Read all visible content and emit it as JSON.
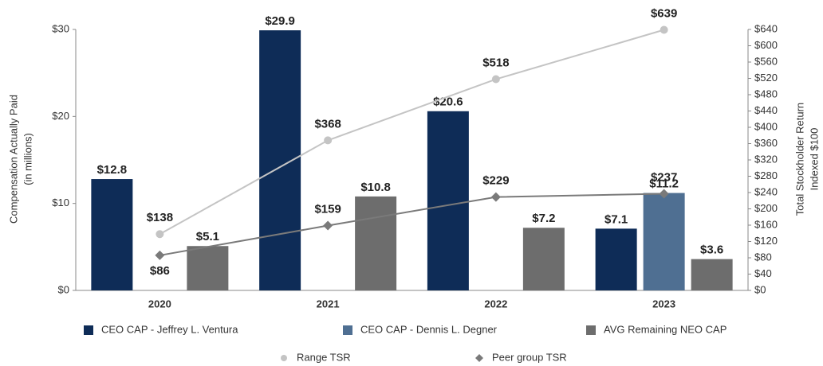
{
  "chart_data": {
    "type": "bar",
    "categories": [
      "2020",
      "2021",
      "2022",
      "2023"
    ],
    "ylabel": [
      "Compensation Actually Paid",
      "(in millions)"
    ],
    "y2label": [
      "Total Stockholder Return",
      "Indexed $100"
    ],
    "ylim": [
      0,
      30
    ],
    "yticks": [
      {
        "value": 0,
        "label": "$0"
      },
      {
        "value": 10,
        "label": "$10"
      },
      {
        "value": 20,
        "label": "$20"
      },
      {
        "value": 30,
        "label": "$30"
      }
    ],
    "y2lim": [
      0,
      640
    ],
    "y2ticks": [
      {
        "value": 0,
        "label": "$0"
      },
      {
        "value": 40,
        "label": "$40"
      },
      {
        "value": 80,
        "label": "$80"
      },
      {
        "value": 120,
        "label": "$120"
      },
      {
        "value": 160,
        "label": "$160"
      },
      {
        "value": 200,
        "label": "$200"
      },
      {
        "value": 240,
        "label": "$240"
      },
      {
        "value": 280,
        "label": "$280"
      },
      {
        "value": 320,
        "label": "$320"
      },
      {
        "value": 360,
        "label": "$360"
      },
      {
        "value": 400,
        "label": "$400"
      },
      {
        "value": 440,
        "label": "$440"
      },
      {
        "value": 480,
        "label": "$480"
      },
      {
        "value": 520,
        "label": "$520"
      },
      {
        "value": 560,
        "label": "$560"
      },
      {
        "value": 600,
        "label": "$600"
      },
      {
        "value": 640,
        "label": "$640"
      }
    ],
    "series": [
      {
        "name": "CEO CAP - Jeffrey L. Ventura",
        "type": "bar",
        "color": "#0e2c57",
        "values": [
          12.8,
          29.9,
          20.6,
          7.1
        ],
        "value_labels": [
          "$12.8",
          "$29.9",
          "$20.6",
          "$7.1"
        ]
      },
      {
        "name": "CEO CAP - Dennis L. Degner",
        "type": "bar",
        "color": "#4f6f92",
        "values": [
          null,
          null,
          null,
          11.2
        ],
        "value_labels": [
          null,
          null,
          null,
          "$11.2"
        ]
      },
      {
        "name": "AVG Remaining NEO CAP",
        "type": "bar",
        "color": "#6d6d6d",
        "values": [
          5.1,
          10.8,
          7.2,
          3.6
        ],
        "value_labels": [
          "$5.1",
          "$10.8",
          "$7.2",
          "$3.6"
        ]
      },
      {
        "name": "Range TSR",
        "type": "line",
        "axis": "y2",
        "marker": "circle",
        "color": "#c4c4c4",
        "values": [
          138,
          368,
          518,
          639
        ],
        "value_labels": [
          "$138",
          "$368",
          "$518",
          "$639"
        ]
      },
      {
        "name": "Peer group TSR",
        "type": "line",
        "axis": "y2",
        "marker": "diamond",
        "color": "#7a7a7a",
        "values": [
          86,
          159,
          229,
          237
        ],
        "value_labels": [
          "$86",
          "$159",
          "$229",
          "$237"
        ]
      }
    ]
  }
}
